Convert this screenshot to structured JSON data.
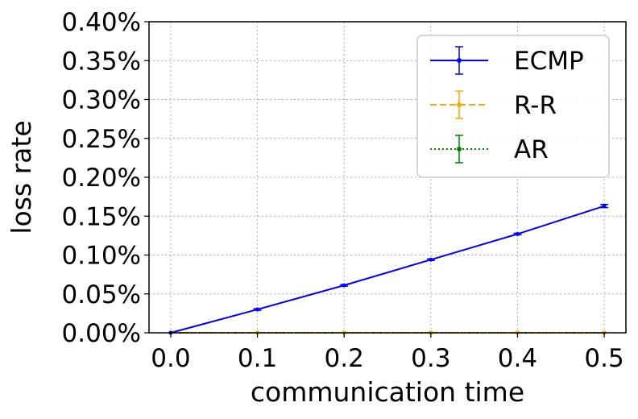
{
  "chart_data": {
    "type": "line",
    "xlabel": "communication time",
    "ylabel": "loss rate",
    "xlim": [
      -0.025,
      0.525
    ],
    "ylim": [
      0,
      0.4
    ],
    "x_ticks": [
      0.0,
      0.1,
      0.2,
      0.3,
      0.4,
      0.5
    ],
    "x_tick_labels": [
      "0.0",
      "0.1",
      "0.2",
      "0.3",
      "0.4",
      "0.5"
    ],
    "y_ticks": [
      0,
      0.05,
      0.1,
      0.15,
      0.2,
      0.25,
      0.3,
      0.35,
      0.4
    ],
    "y_tick_labels": [
      "0.00%",
      "0.05%",
      "0.10%",
      "0.15%",
      "0.20%",
      "0.25%",
      "0.30%",
      "0.35%",
      "0.40%"
    ],
    "grid": true,
    "legend_position": "top-right",
    "series": [
      {
        "name": "ECMP",
        "color": "#0000ff",
        "dash": "solid",
        "marker": "circle",
        "x": [
          0.0,
          0.1,
          0.2,
          0.3,
          0.4,
          0.5
        ],
        "y": [
          0.0,
          0.03,
          0.061,
          0.094,
          0.127,
          0.163
        ],
        "err": [
          0.0,
          0.001,
          0.001,
          0.001,
          0.001,
          0.002
        ]
      },
      {
        "name": "R-R",
        "color": "#ffa500",
        "dash": "dashed",
        "marker": "circle",
        "x": [
          0.0,
          0.1,
          0.2,
          0.3,
          0.4,
          0.5
        ],
        "y": [
          0,
          0,
          0,
          0,
          0,
          0
        ],
        "err": [
          0,
          0,
          0,
          0,
          0,
          0
        ]
      },
      {
        "name": "AR",
        "color": "#008000",
        "dash": "dotted",
        "marker": "circle",
        "x": [
          0.0,
          0.1,
          0.2,
          0.3,
          0.4,
          0.5
        ],
        "y": [
          0,
          0,
          0,
          0,
          0,
          0
        ],
        "err": [
          0,
          0,
          0,
          0,
          0,
          0
        ]
      }
    ]
  }
}
